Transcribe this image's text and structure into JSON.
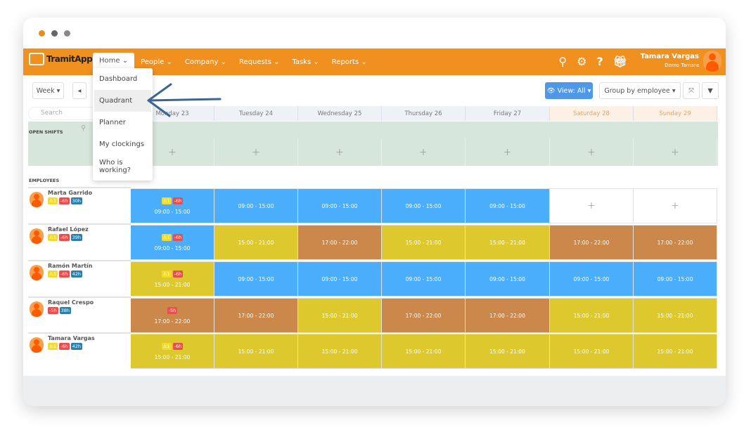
{
  "colors": {
    "nav": "#f0901f",
    "morning": "#4aaefc",
    "afternoon": "#ddc92e",
    "evening": "#cc874a",
    "open": "#d6e6da"
  },
  "app": {
    "name": "TramitApp"
  },
  "nav": {
    "items": [
      "Home",
      "People",
      "Company",
      "Requests",
      "Tasks",
      "Reports"
    ]
  },
  "home_menu": [
    "Dashboard",
    "Quadrant",
    "Planner",
    "My clockings",
    "Who is working?"
  ],
  "user": {
    "name": "Tamara Vargas",
    "subtitle": "Demo Tamara"
  },
  "toolbar": {
    "week": "Week ▾",
    "prev": "◂",
    "view": "👁 View: All ▾",
    "group": "Group by employee ▾",
    "expand": "⤧",
    "filter": "▼"
  },
  "search": {
    "placeholder": "Search"
  },
  "days": [
    "Monday 23",
    "Tuesday 24",
    "Wednesday 25",
    "Thursday 26",
    "Friday 27",
    "Saturday 28",
    "Sunday 29"
  ],
  "open_shifts": {
    "label": "OPEN SHIFTS"
  },
  "employees_label": "EMPLOYEES",
  "employees": [
    {
      "name": "Marta Garrido",
      "badges": [
        "⚠1",
        "-6h",
        "30h"
      ],
      "shifts": [
        "09:00 - 15:00",
        "09:00 - 15:00",
        "09:00 - 15:00",
        "09:00 - 15:00",
        "09:00 - 15:00",
        "",
        ""
      ],
      "types": [
        "m",
        "m",
        "m",
        "m",
        "m",
        "e",
        "e"
      ],
      "first_badges": [
        "⚠1",
        "-6h"
      ]
    },
    {
      "name": "Rafael López",
      "badges": [
        "⚠1",
        "-6h",
        "39h"
      ],
      "shifts": [
        "09:00 - 15:00",
        "15:00 - 21:00",
        "17:00 - 22:00",
        "15:00 - 21:00",
        "15:00 - 21:00",
        "17:00 - 22:00",
        "17:00 - 22:00"
      ],
      "types": [
        "m",
        "a",
        "v",
        "a",
        "a",
        "v",
        "v"
      ],
      "first_badges": [
        "⚠1",
        "-6h"
      ]
    },
    {
      "name": "Ramón Martín",
      "badges": [
        "⚠1",
        "-6h",
        "42h"
      ],
      "shifts": [
        "15:00 - 21:00",
        "09:00 - 15:00",
        "09:00 - 15:00",
        "09:00 - 15:00",
        "09:00 - 15:00",
        "09:00 - 15:00",
        "09:00 - 15:00"
      ],
      "types": [
        "a",
        "m",
        "m",
        "m",
        "m",
        "m",
        "m"
      ],
      "first_badges": [
        "⚠1",
        "-6h"
      ]
    },
    {
      "name": "Raquel Crespo",
      "badges": [
        "-5h",
        "38h"
      ],
      "shifts": [
        "17:00 - 22:00",
        "17:00 - 22:00",
        "15:00 - 21:00",
        "17:00 - 22:00",
        "17:00 - 22:00",
        "15:00 - 21:00",
        "15:00 - 21:00"
      ],
      "types": [
        "v",
        "v",
        "a",
        "v",
        "v",
        "a",
        "a"
      ],
      "first_badges": [
        "-5h"
      ]
    },
    {
      "name": "Tamara Vargas",
      "badges": [
        "⚠1",
        "-6h",
        "42h"
      ],
      "shifts": [
        "15:00 - 21:00",
        "15:00 - 21:00",
        "15:00 - 21:00",
        "15:00 - 21:00",
        "15:00 - 21:00",
        "15:00 - 21:00",
        "15:00 - 21:00"
      ],
      "types": [
        "a",
        "a",
        "a",
        "a",
        "a",
        "a",
        "a"
      ],
      "first_badges": [
        "⚠1",
        "-6h"
      ]
    }
  ]
}
